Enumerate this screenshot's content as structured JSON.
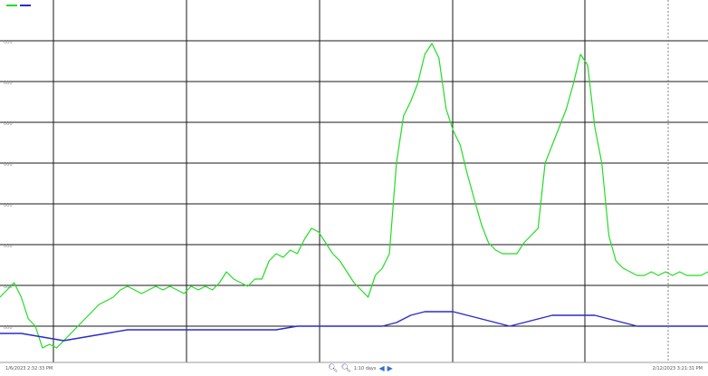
{
  "chart_data": {
    "type": "line",
    "title": "",
    "xlabel": "",
    "ylabel": "",
    "grid": true,
    "x_range": [
      0,
      100
    ],
    "ylim": [
      0,
      100
    ],
    "y_tick_labels": [
      "000",
      "000",
      "000",
      "000",
      "000",
      "000",
      "000",
      "000"
    ],
    "series": [
      {
        "color": "#22dd22",
        "values": [
          [
            0,
            18
          ],
          [
            1,
            20
          ],
          [
            2,
            22
          ],
          [
            3,
            18
          ],
          [
            4,
            12
          ],
          [
            5,
            10
          ],
          [
            6,
            4
          ],
          [
            7,
            5
          ],
          [
            8,
            4
          ],
          [
            9,
            6
          ],
          [
            10,
            8
          ],
          [
            11,
            10
          ],
          [
            12,
            12
          ],
          [
            13,
            14
          ],
          [
            14,
            16
          ],
          [
            15,
            17
          ],
          [
            16,
            18
          ],
          [
            17,
            20
          ],
          [
            18,
            21
          ],
          [
            19,
            20
          ],
          [
            20,
            19
          ],
          [
            21,
            20
          ],
          [
            22,
            21
          ],
          [
            23,
            20
          ],
          [
            24,
            21
          ],
          [
            25,
            20
          ],
          [
            26,
            19
          ],
          [
            27,
            21
          ],
          [
            28,
            20
          ],
          [
            29,
            21
          ],
          [
            30,
            20
          ],
          [
            31,
            22
          ],
          [
            32,
            25
          ],
          [
            33,
            23
          ],
          [
            34,
            22
          ],
          [
            35,
            21
          ],
          [
            36,
            23
          ],
          [
            37,
            23
          ],
          [
            38,
            28
          ],
          [
            39,
            30
          ],
          [
            40,
            29
          ],
          [
            41,
            31
          ],
          [
            42,
            30
          ],
          [
            43,
            34
          ],
          [
            44,
            37
          ],
          [
            45,
            36
          ],
          [
            46,
            33
          ],
          [
            47,
            30
          ],
          [
            48,
            28
          ],
          [
            49,
            25
          ],
          [
            50,
            22
          ],
          [
            51,
            20
          ],
          [
            52,
            18
          ],
          [
            53,
            24
          ],
          [
            54,
            26
          ],
          [
            55,
            30
          ],
          [
            56,
            55
          ],
          [
            57,
            68
          ],
          [
            58,
            72
          ],
          [
            59,
            77
          ],
          [
            60,
            85
          ],
          [
            61,
            88
          ],
          [
            62,
            84
          ],
          [
            63,
            70
          ],
          [
            64,
            64
          ],
          [
            65,
            60
          ],
          [
            66,
            52
          ],
          [
            67,
            45
          ],
          [
            68,
            38
          ],
          [
            69,
            33
          ],
          [
            70,
            31
          ],
          [
            71,
            30
          ],
          [
            72,
            30
          ],
          [
            73,
            30
          ],
          [
            74,
            33
          ],
          [
            75,
            35
          ],
          [
            76,
            37
          ],
          [
            77,
            55
          ],
          [
            78,
            60
          ],
          [
            79,
            65
          ],
          [
            80,
            70
          ],
          [
            81,
            77
          ],
          [
            82,
            85
          ],
          [
            83,
            82
          ],
          [
            84,
            65
          ],
          [
            85,
            55
          ],
          [
            86,
            35
          ],
          [
            87,
            28
          ],
          [
            88,
            26
          ],
          [
            89,
            25
          ],
          [
            90,
            24
          ],
          [
            91,
            24
          ],
          [
            92,
            25
          ],
          [
            93,
            24
          ],
          [
            94,
            25
          ],
          [
            95,
            24
          ],
          [
            96,
            25
          ],
          [
            97,
            24
          ],
          [
            98,
            24
          ],
          [
            99,
            24
          ],
          [
            100,
            25
          ]
        ]
      },
      {
        "color": "#2b2bcc",
        "values": [
          [
            0,
            8
          ],
          [
            3,
            8
          ],
          [
            6,
            7
          ],
          [
            9,
            6
          ],
          [
            12,
            7
          ],
          [
            15,
            8
          ],
          [
            18,
            9
          ],
          [
            21,
            9
          ],
          [
            24,
            9
          ],
          [
            27,
            9
          ],
          [
            30,
            9
          ],
          [
            33,
            9
          ],
          [
            36,
            9
          ],
          [
            39,
            9
          ],
          [
            42,
            10
          ],
          [
            45,
            10
          ],
          [
            48,
            10
          ],
          [
            51,
            10
          ],
          [
            54,
            10
          ],
          [
            56,
            11
          ],
          [
            58,
            13
          ],
          [
            60,
            14
          ],
          [
            62,
            14
          ],
          [
            64,
            14
          ],
          [
            66,
            13
          ],
          [
            68,
            12
          ],
          [
            70,
            11
          ],
          [
            72,
            10
          ],
          [
            74,
            11
          ],
          [
            76,
            12
          ],
          [
            78,
            13
          ],
          [
            80,
            13
          ],
          [
            82,
            13
          ],
          [
            84,
            13
          ],
          [
            86,
            12
          ],
          [
            88,
            11
          ],
          [
            90,
            10
          ],
          [
            92,
            10
          ],
          [
            94,
            10
          ],
          [
            96,
            10
          ],
          [
            98,
            10
          ],
          [
            100,
            10
          ]
        ]
      }
    ]
  },
  "footer": {
    "time_start": "1/6/2023 2:32:33 PM",
    "time_end": "2/12/2023 3:21:31 PM",
    "zoom_level": "1:10 days",
    "zoom_in_icon": "magnifier-plus-icon",
    "zoom_out_icon": "magnifier-minus-icon",
    "nav_left_icon": "arrow-left-icon",
    "nav_right_icon": "arrow-right-icon"
  }
}
